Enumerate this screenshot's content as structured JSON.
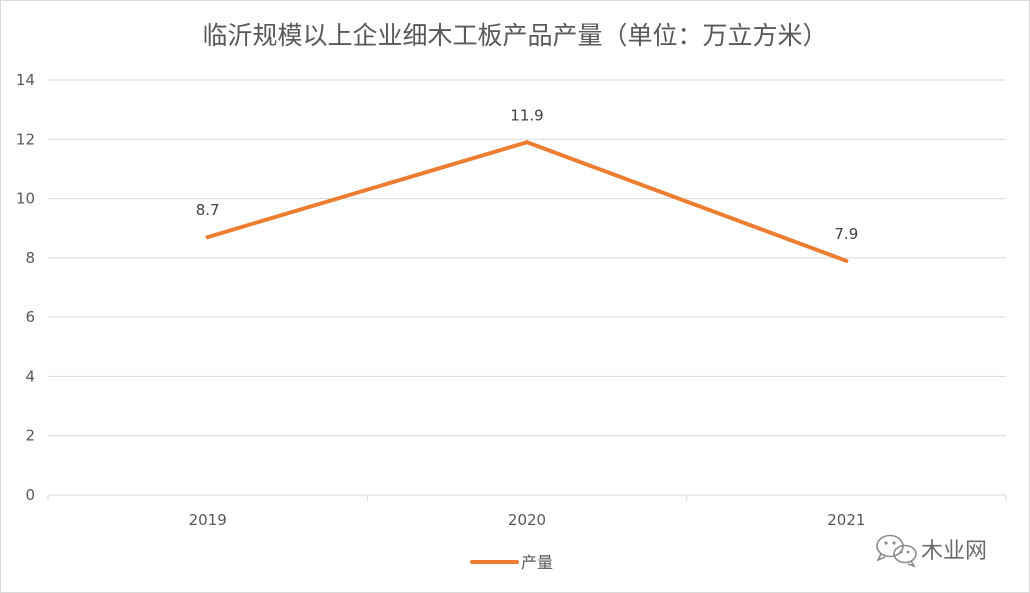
{
  "chart_data": {
    "type": "line",
    "title": "临沂规模以上企业细木工板产品产量（单位：万立方米）",
    "categories": [
      "2019",
      "2020",
      "2021"
    ],
    "series": [
      {
        "name": "产量",
        "values": [
          8.7,
          11.9,
          7.9
        ],
        "color": "#ED7D31"
      }
    ],
    "data_labels": [
      "8.7",
      "11.9",
      "7.9"
    ],
    "y_ticks": [
      "0",
      "2",
      "4",
      "6",
      "8",
      "10",
      "12",
      "14"
    ],
    "ylim": [
      0,
      14
    ],
    "grid": true,
    "legend_position": "bottom"
  },
  "watermark": {
    "text": "木业网",
    "icon": "wechat-icon"
  },
  "colors": {
    "gridline": "#d9d9d9",
    "text": "#595959"
  }
}
